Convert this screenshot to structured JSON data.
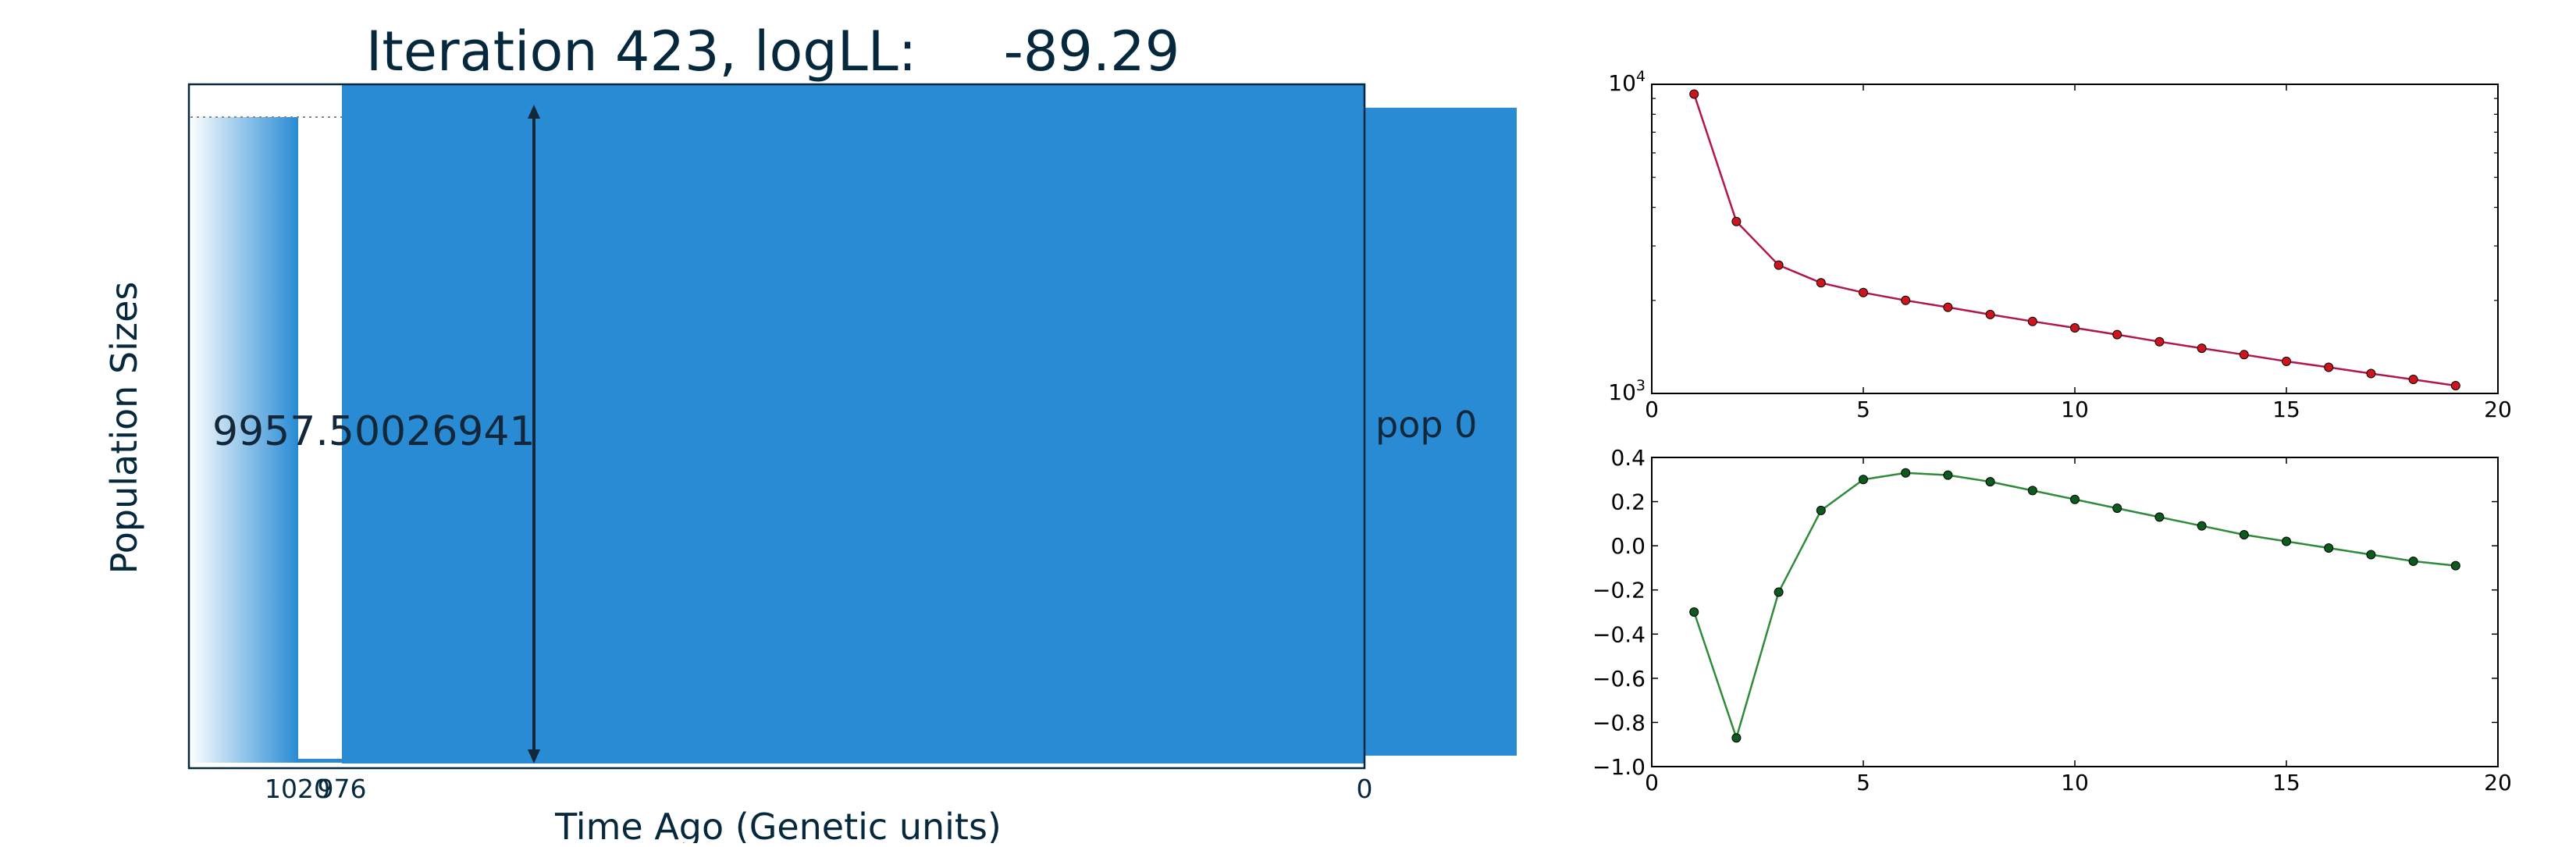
{
  "title": "Iteration 423, logLL:     -89.29",
  "colors": {
    "pop_fill": "#288bd4",
    "text_dark": "#06283d",
    "line_red": "#b0164f",
    "marker_red": "#d0141e",
    "line_green": "#2e8b3a",
    "marker_green": "#0c5a1e"
  },
  "main_plot": {
    "ylabel": "Population Sizes",
    "xlabel": "Time Ago (Genetic units)",
    "xticks": [
      "1020",
      "976",
      "0"
    ],
    "size_label": "9957.50026941",
    "pop_label": "pop 0"
  },
  "chart_data": [
    {
      "type": "line",
      "scale": "log-y",
      "xlim": [
        0,
        20
      ],
      "ylim": [
        1000,
        10000
      ],
      "xticks": [
        "0",
        "5",
        "10",
        "15",
        "20"
      ],
      "yticks": [
        "10^3",
        "10^4"
      ],
      "x": [
        1,
        2,
        3,
        4,
        5,
        6,
        7,
        8,
        9,
        10,
        11,
        12,
        13,
        14,
        15,
        16,
        17,
        18,
        19
      ],
      "values": [
        9300,
        3600,
        2600,
        2280,
        2120,
        2000,
        1900,
        1800,
        1710,
        1630,
        1550,
        1470,
        1400,
        1335,
        1270,
        1215,
        1160,
        1110,
        1060
      ]
    },
    {
      "type": "line",
      "xlim": [
        0,
        20
      ],
      "ylim": [
        -1.0,
        0.4
      ],
      "xticks": [
        "0",
        "5",
        "10",
        "15",
        "20"
      ],
      "yticks": [
        "0.4",
        "0.2",
        "0.0",
        "−0.2",
        "−0.4",
        "−0.6",
        "−0.8",
        "−1.0"
      ],
      "x": [
        1,
        2,
        3,
        4,
        5,
        6,
        7,
        8,
        9,
        10,
        11,
        12,
        13,
        14,
        15,
        16,
        17,
        18,
        19
      ],
      "values": [
        -0.3,
        -0.87,
        -0.21,
        0.16,
        0.3,
        0.33,
        0.32,
        0.29,
        0.25,
        0.21,
        0.17,
        0.13,
        0.09,
        0.05,
        0.02,
        -0.01,
        -0.04,
        -0.07,
        -0.09
      ]
    }
  ]
}
